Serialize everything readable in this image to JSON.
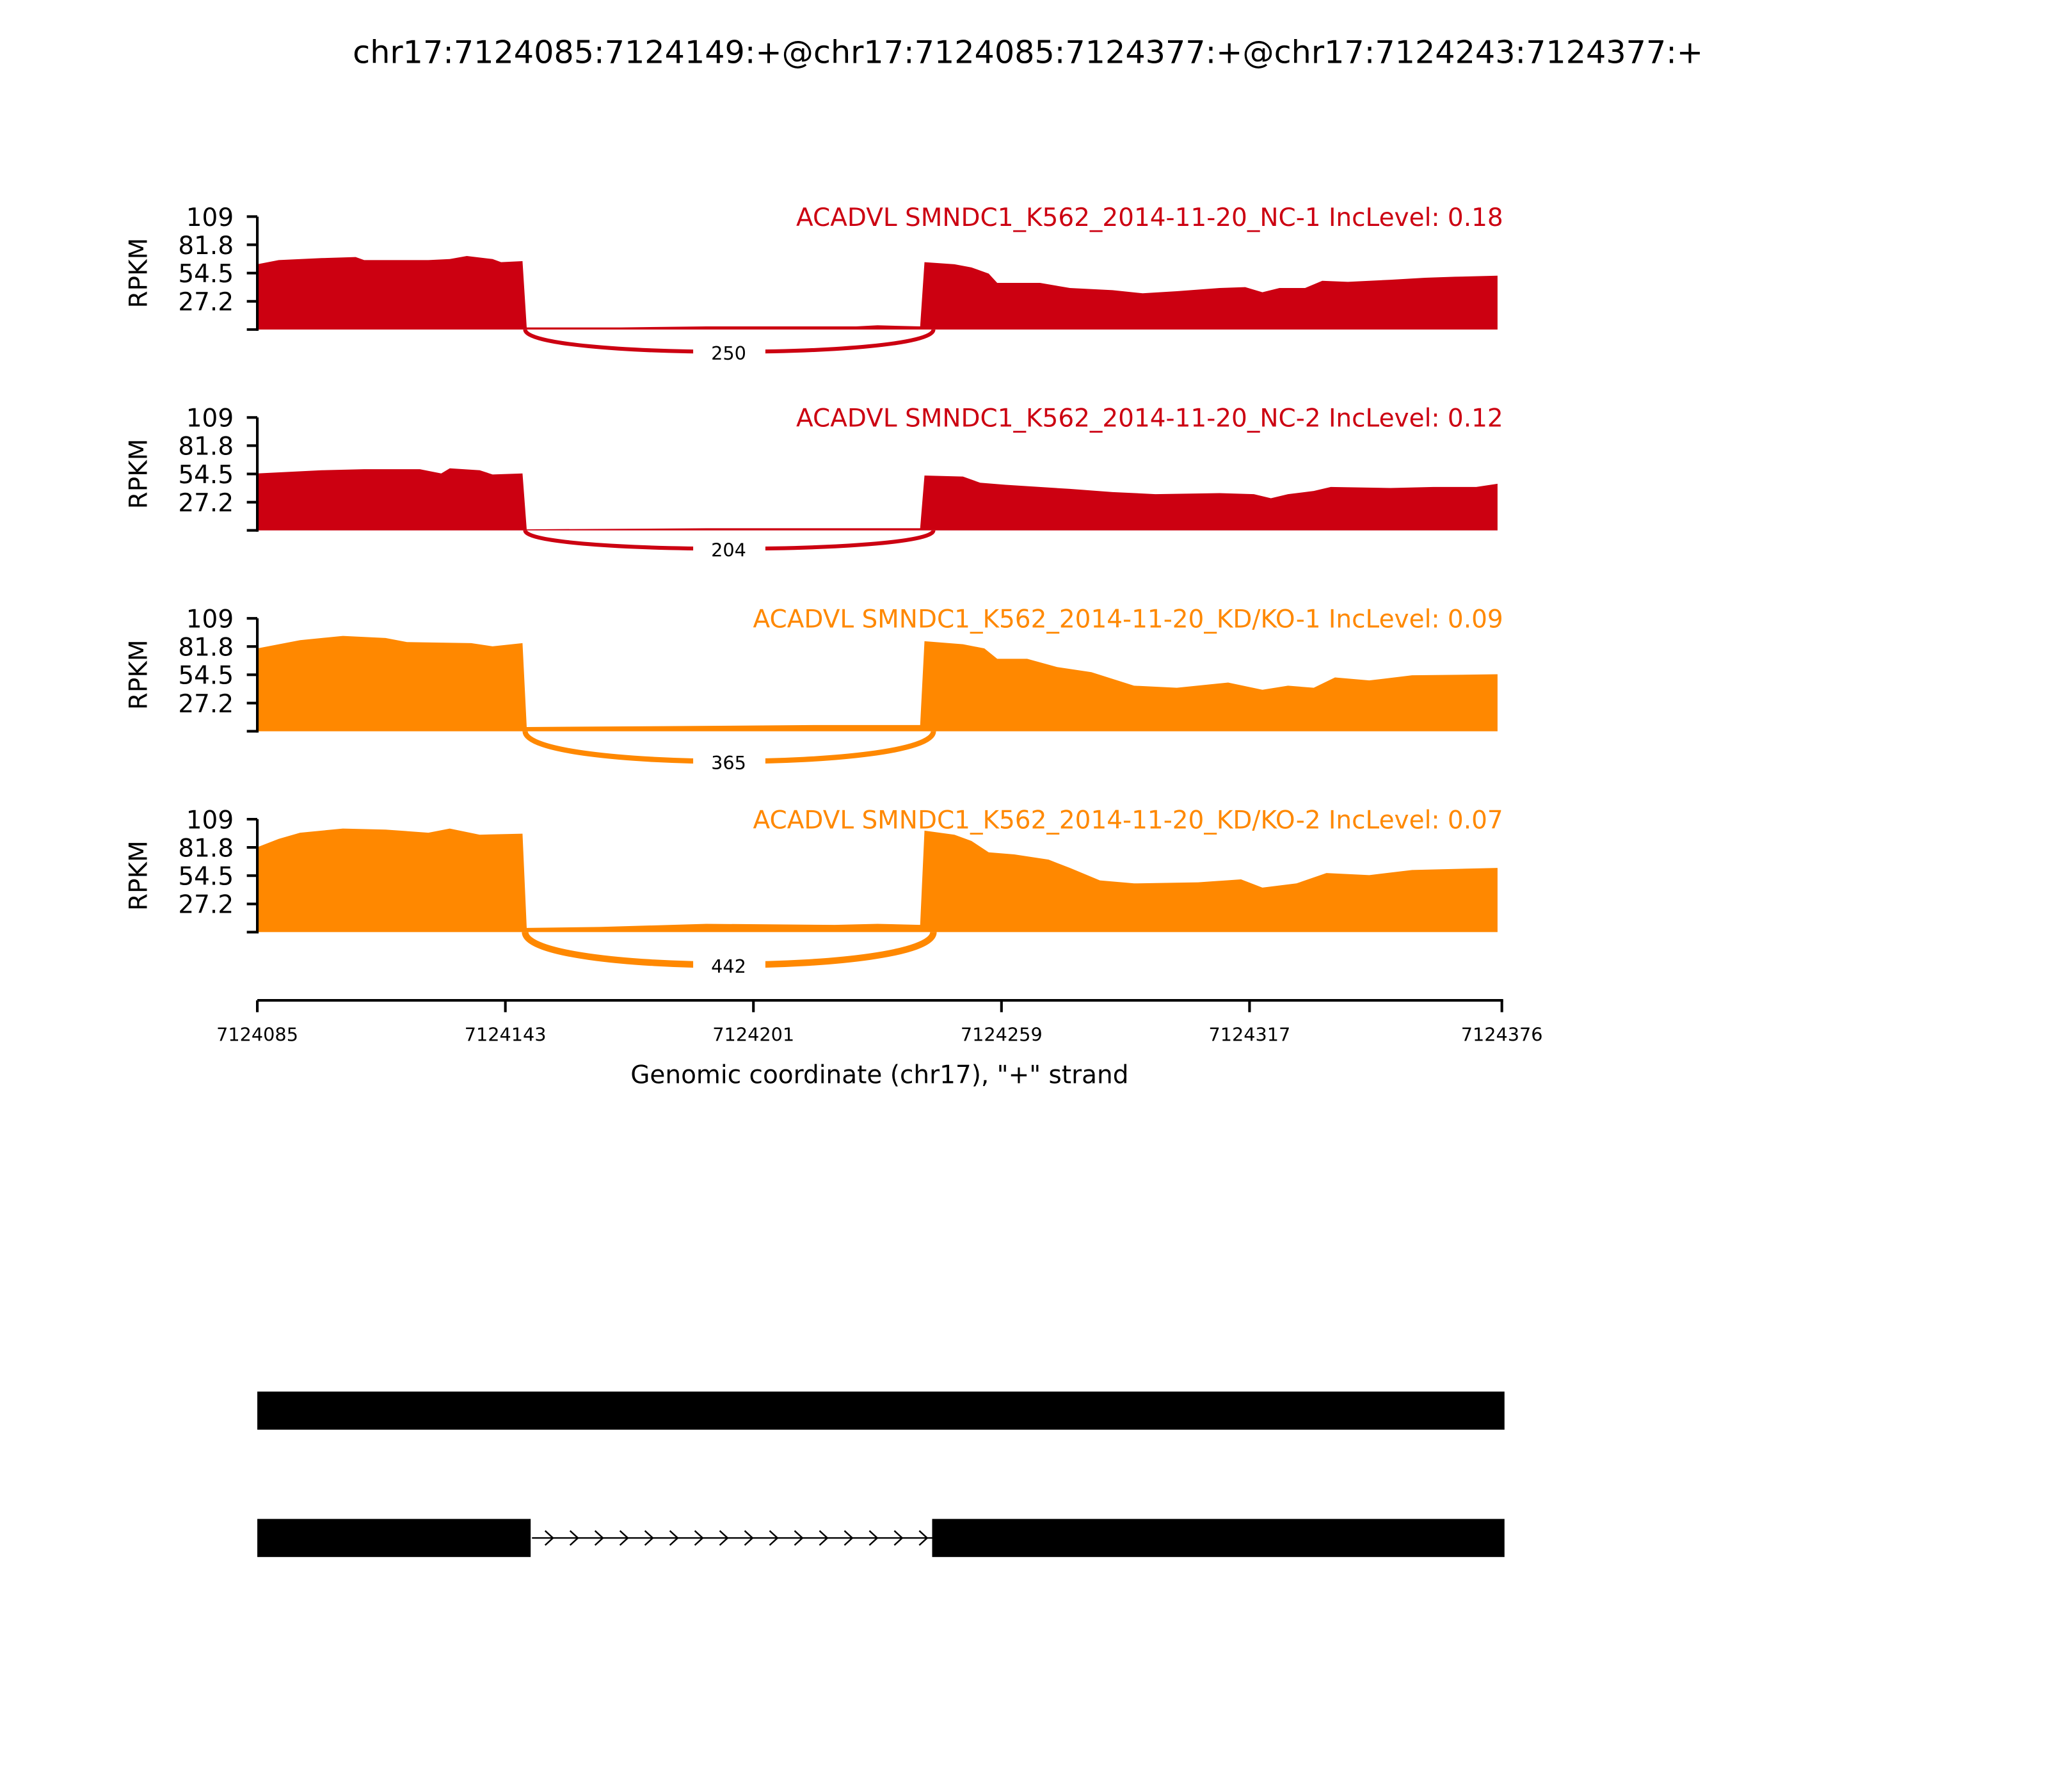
{
  "chart_data": {
    "type": "area",
    "title": "chr17:7124085:7124149:+@chr17:7124085:7124377:+@chr17:7124243:7124377:+",
    "xlabel": "Genomic coordinate (chr17), \"+\" strand",
    "ylabel": "RPKM",
    "xlim": [
      7124085,
      7124376
    ],
    "ylim": [
      0,
      109
    ],
    "x_ticks": [
      "7124085",
      "7124143",
      "7124201",
      "7124259",
      "7124317",
      "7124376"
    ],
    "y_ticks": [
      "109",
      "81.8",
      "54.5",
      "27.2"
    ],
    "junction": {
      "start": 7124148,
      "end": 7124243
    },
    "tracks": [
      {
        "label": "ACADVL SMNDC1_K562_2014-11-20_NC-1 IncLevel: 0.18",
        "color": "#cc0011",
        "junction_count": "250",
        "coverage": [
          [
            7124085,
            63
          ],
          [
            7124090,
            67
          ],
          [
            7124100,
            69
          ],
          [
            7124108,
            70
          ],
          [
            7124110,
            67
          ],
          [
            7124125,
            67
          ],
          [
            7124130,
            68
          ],
          [
            7124134,
            71
          ],
          [
            7124140,
            68
          ],
          [
            7124142,
            65
          ],
          [
            7124147,
            66
          ],
          [
            7124148,
            2
          ],
          [
            7124170,
            2
          ],
          [
            7124190,
            3
          ],
          [
            7124225,
            3
          ],
          [
            7124230,
            4
          ],
          [
            7124240,
            3
          ],
          [
            7124241,
            65
          ],
          [
            7124248,
            63
          ],
          [
            7124252,
            60
          ],
          [
            7124256,
            54
          ],
          [
            7124258,
            45
          ],
          [
            7124268,
            45
          ],
          [
            7124275,
            40
          ],
          [
            7124285,
            38
          ],
          [
            7124292,
            35
          ],
          [
            7124300,
            37
          ],
          [
            7124310,
            40
          ],
          [
            7124316,
            41
          ],
          [
            7124320,
            36
          ],
          [
            7124324,
            40
          ],
          [
            7124330,
            40
          ],
          [
            7124334,
            47
          ],
          [
            7124340,
            46
          ],
          [
            7124350,
            48
          ],
          [
            7124358,
            50
          ],
          [
            7124365,
            51
          ],
          [
            7124375,
            52
          ]
        ]
      },
      {
        "label": "ACADVL SMNDC1_K562_2014-11-20_NC-2 IncLevel: 0.12",
        "color": "#cc0011",
        "junction_count": "204",
        "coverage": [
          [
            7124085,
            55
          ],
          [
            7124100,
            58
          ],
          [
            7124110,
            59
          ],
          [
            7124123,
            59
          ],
          [
            7124128,
            55
          ],
          [
            7124130,
            60
          ],
          [
            7124137,
            58
          ],
          [
            7124140,
            54
          ],
          [
            7124147,
            55
          ],
          [
            7124148,
            1
          ],
          [
            7124190,
            2
          ],
          [
            7124230,
            2
          ],
          [
            7124240,
            2
          ],
          [
            7124241,
            53
          ],
          [
            7124250,
            52
          ],
          [
            7124254,
            46
          ],
          [
            7124260,
            44
          ],
          [
            7124275,
            40
          ],
          [
            7124285,
            37
          ],
          [
            7124295,
            35
          ],
          [
            7124310,
            36
          ],
          [
            7124318,
            35
          ],
          [
            7124322,
            31
          ],
          [
            7124326,
            35
          ],
          [
            7124332,
            38
          ],
          [
            7124336,
            42
          ],
          [
            7124350,
            41
          ],
          [
            7124360,
            42
          ],
          [
            7124370,
            42
          ],
          [
            7124375,
            45
          ]
        ]
      },
      {
        "label": "ACADVL SMNDC1_K562_2014-11-20_KD/KO-1 IncLevel: 0.09",
        "color": "#ff8800",
        "junction_count": "365",
        "coverage": [
          [
            7124085,
            80
          ],
          [
            7124095,
            88
          ],
          [
            7124105,
            92
          ],
          [
            7124115,
            90
          ],
          [
            7124120,
            86
          ],
          [
            7124135,
            85
          ],
          [
            7124140,
            82
          ],
          [
            7124147,
            85
          ],
          [
            7124148,
            4
          ],
          [
            7124180,
            5
          ],
          [
            7124215,
            6
          ],
          [
            7124240,
            6
          ],
          [
            7124241,
            87
          ],
          [
            7124250,
            84
          ],
          [
            7124255,
            80
          ],
          [
            7124258,
            70
          ],
          [
            7124265,
            70
          ],
          [
            7124272,
            62
          ],
          [
            7124280,
            57
          ],
          [
            7124290,
            44
          ],
          [
            7124300,
            42
          ],
          [
            7124312,
            47
          ],
          [
            7124320,
            40
          ],
          [
            7124326,
            44
          ],
          [
            7124332,
            42
          ],
          [
            7124337,
            52
          ],
          [
            7124345,
            49
          ],
          [
            7124355,
            54
          ],
          [
            7124375,
            55
          ]
        ]
      },
      {
        "label": "ACADVL SMNDC1_K562_2014-11-20_KD/KO-2 IncLevel: 0.07",
        "color": "#ff8800",
        "junction_count": "442",
        "coverage": [
          [
            7124085,
            82
          ],
          [
            7124090,
            90
          ],
          [
            7124095,
            96
          ],
          [
            7124105,
            100
          ],
          [
            7124115,
            99
          ],
          [
            7124125,
            96
          ],
          [
            7124130,
            100
          ],
          [
            7124137,
            94
          ],
          [
            7124147,
            95
          ],
          [
            7124148,
            4
          ],
          [
            7124165,
            5
          ],
          [
            7124190,
            8
          ],
          [
            7124220,
            7
          ],
          [
            7124230,
            8
          ],
          [
            7124240,
            7
          ],
          [
            7124241,
            98
          ],
          [
            7124248,
            94
          ],
          [
            7124252,
            88
          ],
          [
            7124256,
            77
          ],
          [
            7124262,
            75
          ],
          [
            7124270,
            70
          ],
          [
            7124275,
            62
          ],
          [
            7124282,
            50
          ],
          [
            7124290,
            47
          ],
          [
            7124305,
            48
          ],
          [
            7124315,
            51
          ],
          [
            7124320,
            43
          ],
          [
            7124328,
            47
          ],
          [
            7124335,
            57
          ],
          [
            7124345,
            55
          ],
          [
            7124355,
            60
          ],
          [
            7124375,
            62
          ]
        ]
      }
    ],
    "gene_models": [
      {
        "exons": [
          [
            7124085,
            7124377
          ]
        ]
      },
      {
        "exons": [
          [
            7124085,
            7124149
          ],
          [
            7124243,
            7124377
          ]
        ]
      }
    ]
  }
}
